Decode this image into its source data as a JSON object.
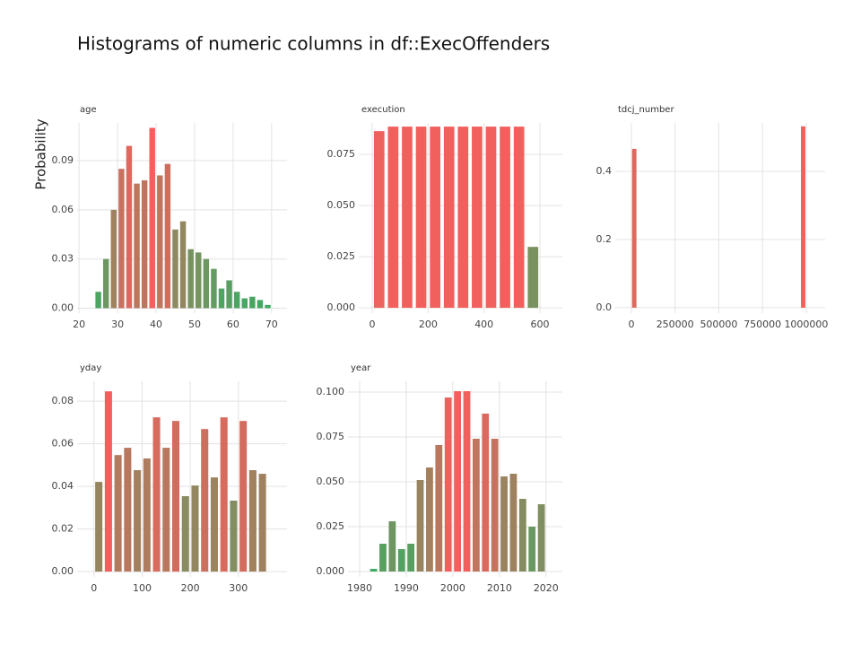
{
  "title": "Histograms of numeric columns in df::ExecOffenders",
  "ylabel": "Probability",
  "chart_data": [
    {
      "type": "histogram",
      "title": "age",
      "color_low": "#3cab62",
      "color_high": "#f1605d",
      "grid": true,
      "bins": [
        24,
        26,
        28,
        30,
        32,
        34,
        36,
        38,
        40,
        42,
        44,
        46,
        48,
        50,
        52,
        54,
        56,
        58,
        60,
        62,
        64,
        66,
        68,
        70
      ],
      "values": [
        0.01,
        0.03,
        0.06,
        0.085,
        0.099,
        0.076,
        0.078,
        0.11,
        0.081,
        0.088,
        0.048,
        0.053,
        0.036,
        0.034,
        0.03,
        0.024,
        0.012,
        0.017,
        0.01,
        0.006,
        0.007,
        0.005,
        0.002
      ],
      "xlim": [
        19.5,
        74
      ],
      "xticks": [
        20,
        30,
        40,
        50,
        60,
        70
      ],
      "ylim": [
        -0.003,
        0.113
      ],
      "yticks": [
        {
          "value": 0,
          "label": "0.00"
        },
        0.03,
        0.06,
        0.09
      ]
    },
    {
      "type": "histogram",
      "title": "execution",
      "color_low": "#3cab62",
      "color_high": "#f1605d",
      "grid": true,
      "bins": [
        0,
        50,
        100,
        150,
        200,
        250,
        300,
        350,
        400,
        450,
        500,
        550,
        600
      ],
      "values": [
        0.0864,
        0.0886,
        0.0886,
        0.0886,
        0.0886,
        0.0886,
        0.0886,
        0.0886,
        0.0886,
        0.0886,
        0.0886,
        0.0298
      ],
      "xlim": [
        -48,
        680
      ],
      "xticks": [
        0,
        200,
        400,
        600
      ],
      "ylim": [
        -0.0026,
        0.0904
      ],
      "yticks": [
        {
          "value": 0,
          "label": "0.000"
        },
        0.025,
        {
          "value": 0.05,
          "label": "0.050"
        },
        0.075
      ]
    },
    {
      "type": "histogram",
      "title": "tdcj_number",
      "color_low": "#3cab62",
      "color_high": "#f1605d",
      "grid": true,
      "bins": [
        0,
        33300,
        66600,
        99900,
        133200,
        166500,
        199800,
        233100,
        266400,
        299700,
        333000,
        366300,
        399600,
        432900,
        466200,
        499500,
        532800,
        566100,
        599400,
        632700,
        666000,
        699300,
        732600,
        765900,
        799200,
        832500,
        865800,
        899100,
        932400,
        965700,
        999000
      ],
      "values": [
        0.466,
        0,
        0,
        0,
        0,
        0,
        0,
        0,
        0,
        0,
        0,
        0,
        0,
        0,
        0,
        0,
        0,
        0,
        0,
        0,
        0,
        0,
        0,
        0,
        0,
        0,
        0,
        0,
        0,
        0.532
      ],
      "xlim": [
        -92000,
        1108000
      ],
      "xticks": [
        0,
        250000,
        500000,
        750000,
        1000000
      ],
      "ylim": [
        -0.016,
        0.542
      ],
      "yticks": [
        {
          "value": 0,
          "label": "0.0"
        },
        0.2,
        0.4
      ]
    },
    {
      "type": "histogram",
      "title": "yday",
      "color_low": "#3cab62",
      "color_high": "#f1605d",
      "grid": true,
      "bins": [
        0,
        20,
        40,
        60,
        80,
        100,
        120,
        140,
        160,
        180,
        200,
        220,
        240,
        260,
        280,
        300,
        320,
        340,
        360
      ],
      "values": [
        0.0421,
        0.0846,
        0.0547,
        0.0581,
        0.0476,
        0.0531,
        0.0724,
        0.0581,
        0.0707,
        0.0354,
        0.0404,
        0.0669,
        0.0442,
        0.0724,
        0.0333,
        0.0707,
        0.0476,
        0.0459
      ],
      "xlim": [
        -35,
        401
      ],
      "xticks": [
        0,
        100,
        200,
        300
      ],
      "ylim": [
        -0.0025,
        0.0893
      ],
      "yticks": [
        {
          "value": 0,
          "label": "0.00"
        },
        0.02,
        0.04,
        0.06,
        0.08
      ]
    },
    {
      "type": "histogram",
      "title": "year",
      "color_low": "#3cab62",
      "color_high": "#f1605d",
      "grid": true,
      "bins": [
        1982,
        1984,
        1986,
        1988,
        1990,
        1992,
        1994,
        1996,
        1998,
        2000,
        2002,
        2004,
        2006,
        2008,
        2010,
        2012,
        2014,
        2016,
        2018,
        2020
      ],
      "values": [
        0.0015,
        0.0155,
        0.028,
        0.0125,
        0.0155,
        0.051,
        0.058,
        0.0705,
        0.097,
        0.1005,
        0.1005,
        0.074,
        0.088,
        0.074,
        0.053,
        0.0545,
        0.0405,
        0.025,
        0.0375
      ],
      "xlim": [
        1977.5,
        2023.5
      ],
      "xticks": [
        1980,
        1990,
        2000,
        2010,
        2020
      ],
      "ylim": [
        -0.003,
        0.106
      ],
      "yticks": [
        {
          "value": 0,
          "label": "0.000"
        },
        0.025,
        {
          "value": 0.05,
          "label": "0.050"
        },
        0.075,
        {
          "value": 0.1,
          "label": "0.100"
        }
      ]
    }
  ]
}
